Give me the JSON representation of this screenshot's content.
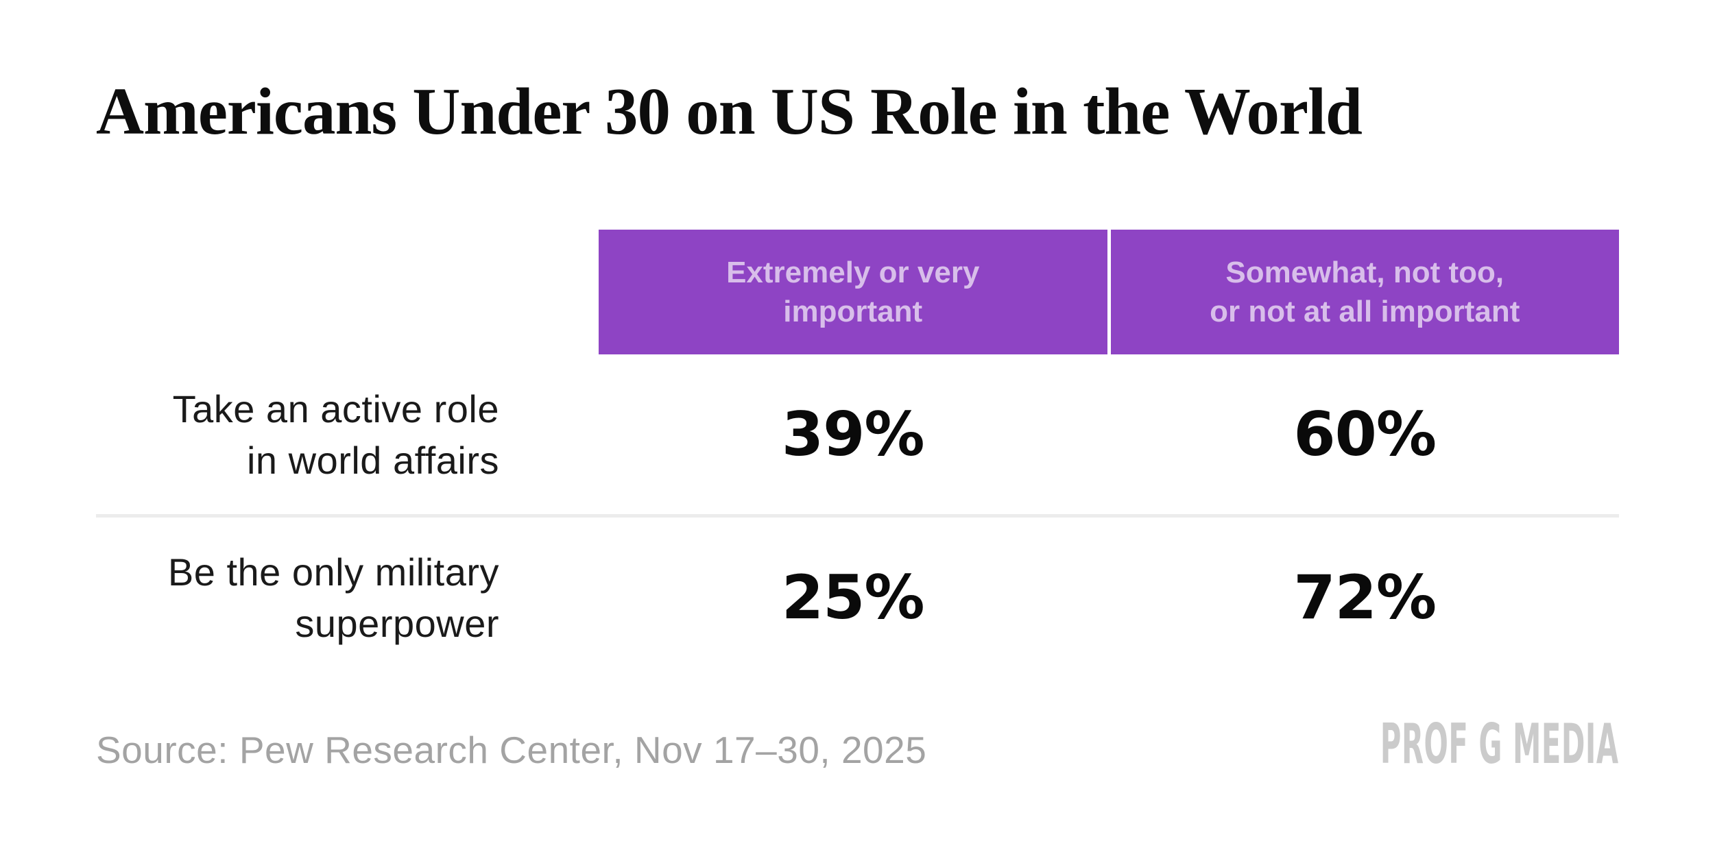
{
  "page": {
    "title": "Americans Under 30 on US Role in the World"
  },
  "table": {
    "headers": [
      {
        "line1": "Extremely or very",
        "line2": "important"
      },
      {
        "line1": "Somewhat, not too,",
        "line2": "or not at all important"
      }
    ],
    "rows": [
      {
        "label1": "Take an active role",
        "label2": "in world affairs",
        "col1": "39%",
        "col2": "60%"
      },
      {
        "label1": "Be the only military",
        "label2": "superpower",
        "col1": "25%",
        "col2": "72%"
      }
    ]
  },
  "footer": {
    "source": "Source: Pew Research Center, Nov 17–30, 2025",
    "brand": "PROF G MEDIA"
  },
  "colors": {
    "accent_purple": "#8e44c4",
    "header_text": "#d8beea",
    "body_text": "#1a1a1a",
    "value_text": "#0a0a0a",
    "source_gray": "#a3a3a3",
    "brand_gray": "#cbcbcb",
    "divider_gray": "#ececec",
    "background": "#ffffff"
  },
  "chart_data": {
    "type": "table",
    "title": "Americans Under 30 on US Role in the World",
    "columns": [
      "Extremely or very important",
      "Somewhat, not too, or not at all important"
    ],
    "categories": [
      "Take an active role in world affairs",
      "Be the only military superpower"
    ],
    "series": [
      {
        "name": "Extremely or very important",
        "values": [
          39,
          25
        ]
      },
      {
        "name": "Somewhat, not too, or not at all important",
        "values": [
          60,
          72
        ]
      }
    ],
    "unit": "%",
    "source": "Source: Pew Research Center, Nov 17–30, 2025",
    "branding": "PROF G MEDIA",
    "legend_position": "table-header",
    "grid": false
  }
}
